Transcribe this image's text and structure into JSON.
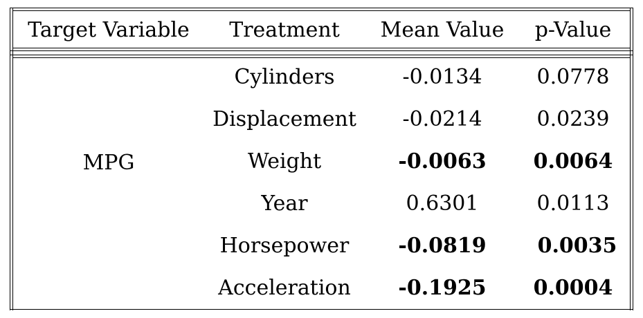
{
  "table": {
    "headers": [
      "Target Variable",
      "Treatment",
      "Mean Value",
      "p-Value"
    ],
    "target_variable": "MPG",
    "rows": [
      {
        "treatment": "Cylinders",
        "mean": "-0.0134",
        "p": "0.0778",
        "bold": false
      },
      {
        "treatment": "Displacement",
        "mean": "-0.0214",
        "p": "0.0239",
        "bold": false
      },
      {
        "treatment": "Weight",
        "mean": "-0.0063",
        "p": "0.0064",
        "bold": true
      },
      {
        "treatment": "Year",
        "mean": "0.6301",
        "p": "0.0113",
        "bold": false
      },
      {
        "treatment": "Horsepower",
        "mean": "-0.0819",
        "p": "0.0035",
        "bold": true
      },
      {
        "treatment": "Acceleration",
        "mean": "-0.1925",
        "p": "0.0004",
        "bold": true
      }
    ]
  }
}
